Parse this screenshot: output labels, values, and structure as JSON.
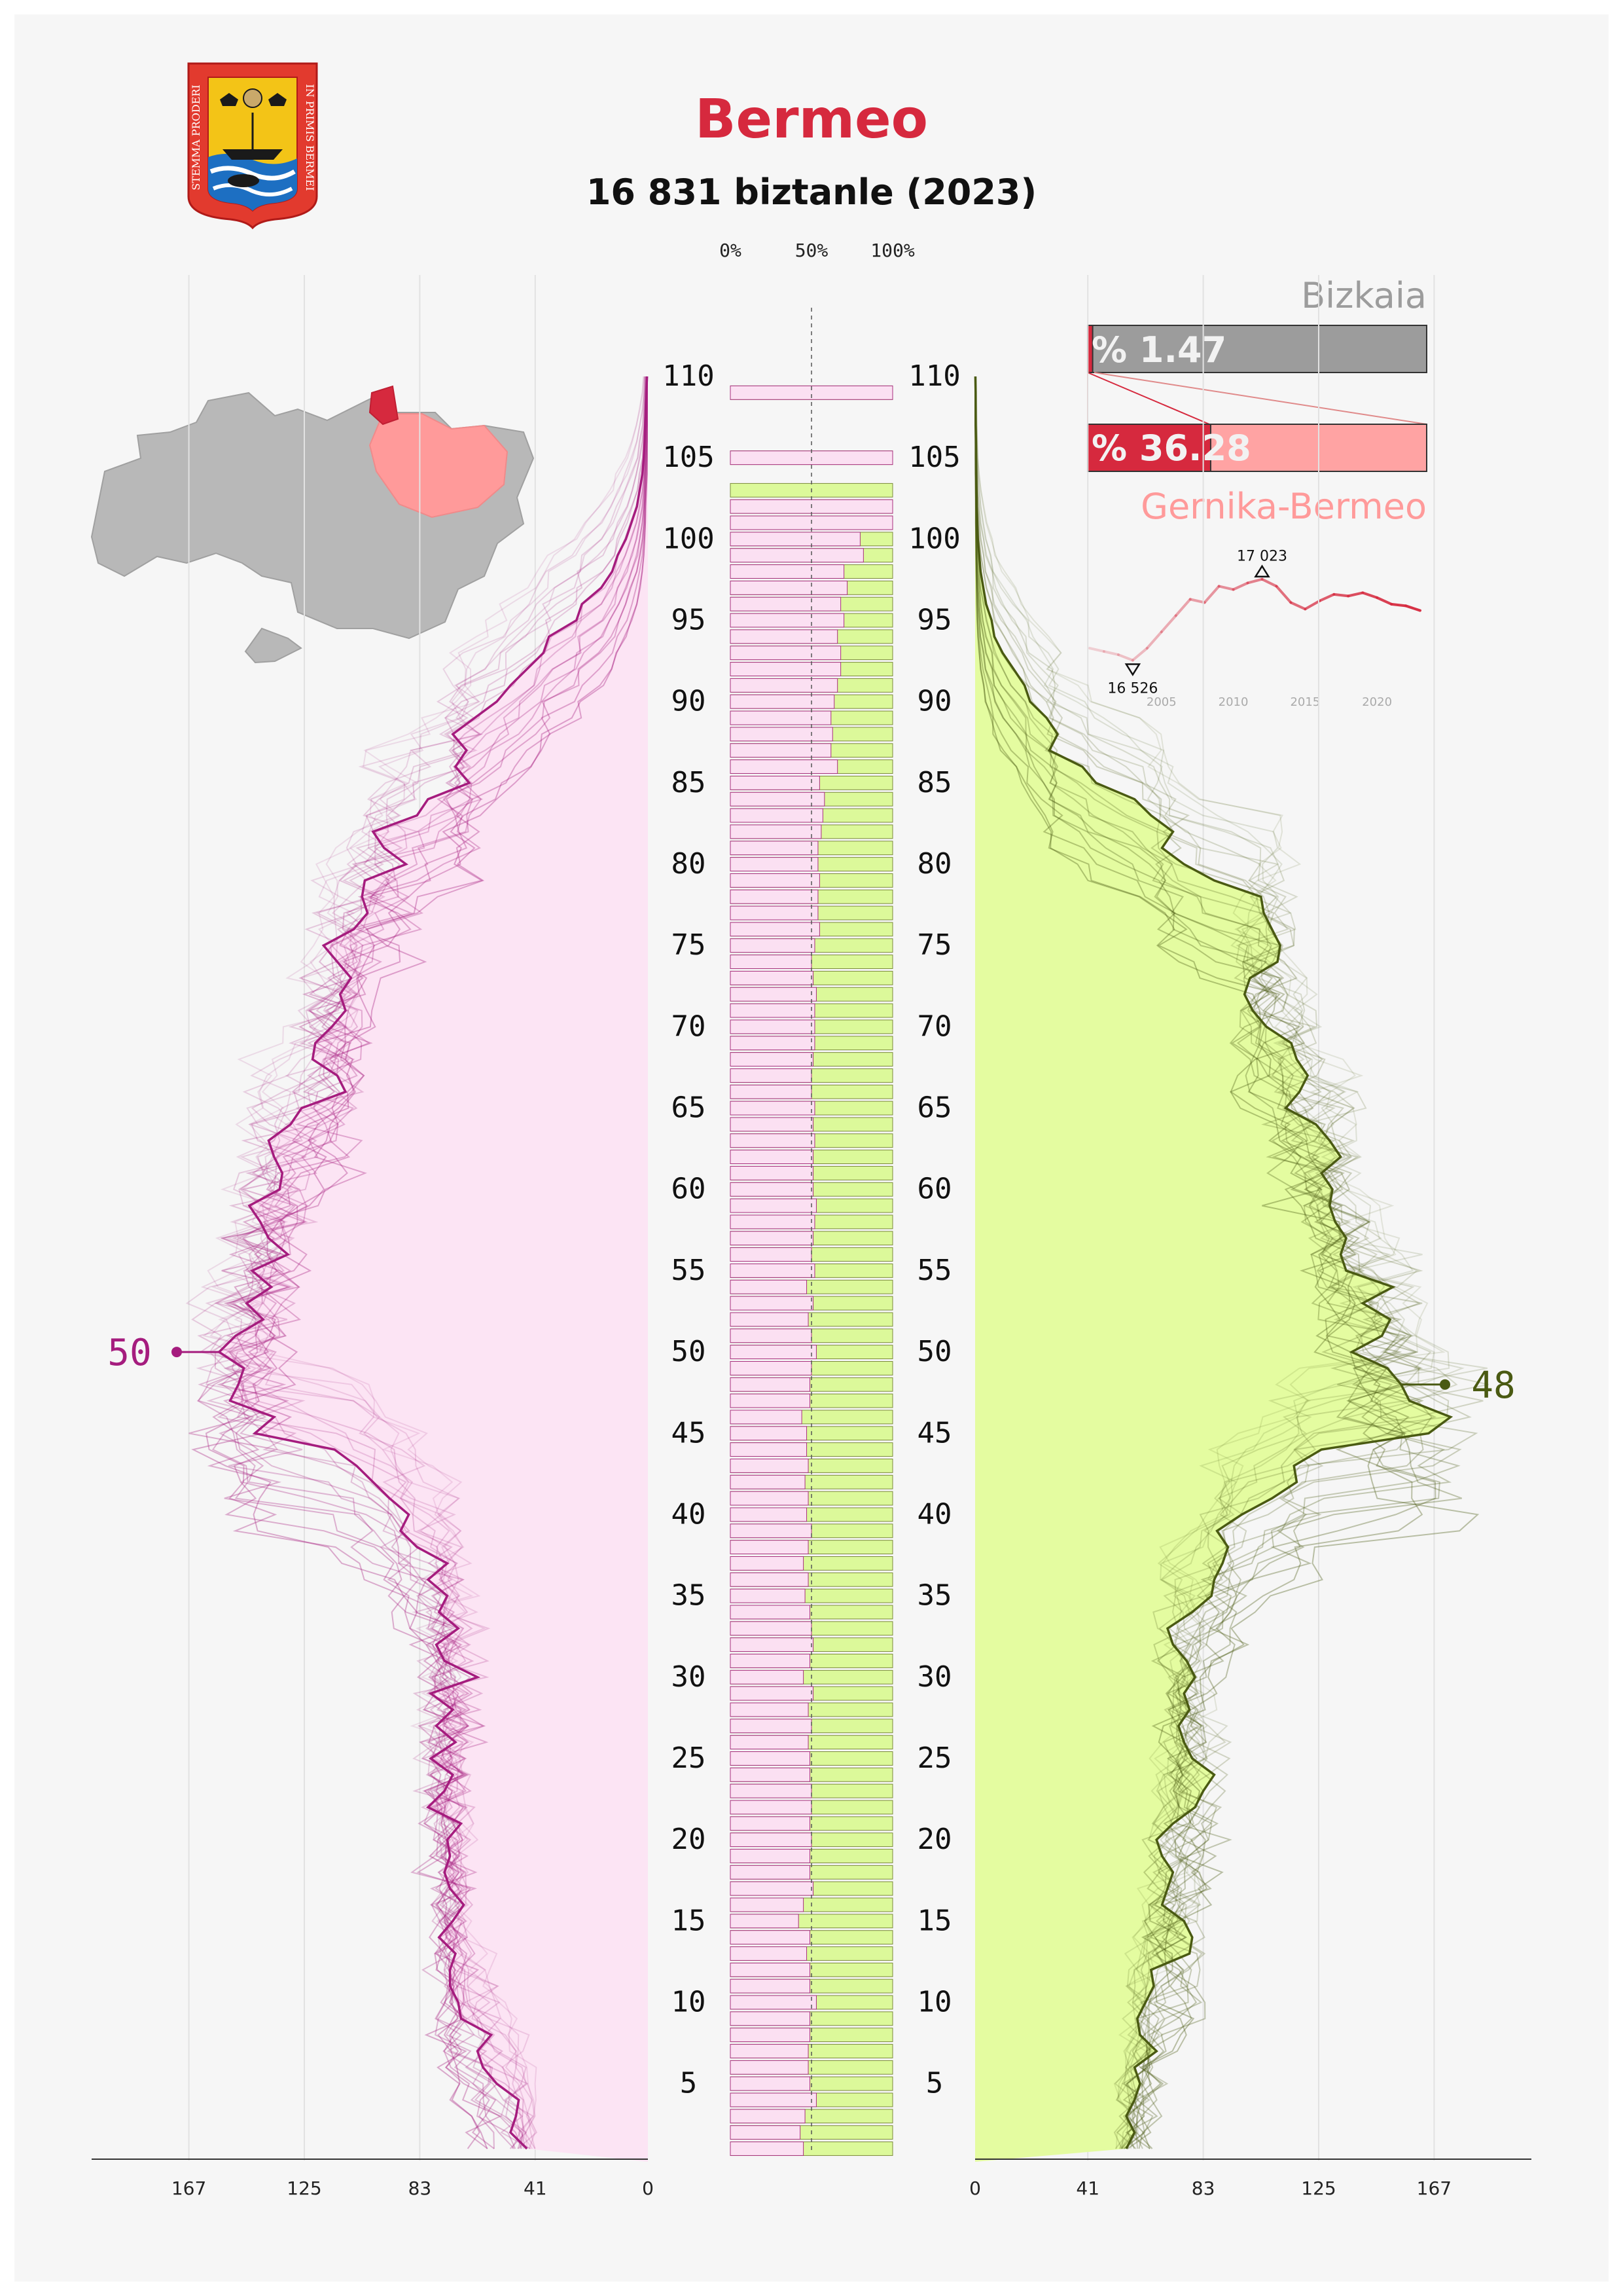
{
  "header": {
    "title": "Bermeo",
    "subtitle": "16 831 biztanle (2023)"
  },
  "colors": {
    "title": "#d6293e",
    "female": "#a51c7e",
    "female_fill": "#fce4f4",
    "male": "#4a5a12",
    "male_fill": "#e4fca0",
    "male_bar": "#dcf99a",
    "female_bar": "#fbe0f2",
    "region_dark": "#d6293e",
    "region_light": "#ff9a9a",
    "province": "#b8b8b8",
    "bizkaia_bar": "#9c9c9c",
    "comarca_bar": "#ffa3a3"
  },
  "icons": {
    "coat_of_arms": "bermeo-coat-of-arms",
    "map": "bizkaia-map-icon"
  },
  "coat_of_arms_text": {
    "left": "STEMMA PRODERI",
    "right": "IN PRIMIS BERMEI"
  },
  "chart_data": {
    "type": "population-pyramid",
    "year": 2023,
    "total_population": 16831,
    "age_labels": [
      "5",
      "10",
      "15",
      "20",
      "25",
      "30",
      "35",
      "40",
      "45",
      "50",
      "55",
      "60",
      "65",
      "70",
      "75",
      "80",
      "85",
      "90",
      "95",
      "100",
      "105",
      "110"
    ],
    "x_ticks": [
      "167",
      "125",
      "83",
      "41",
      "0"
    ],
    "x_ticks_right": [
      "0",
      "41",
      "83",
      "125",
      "167"
    ],
    "xlim": [
      0,
      205
    ],
    "ages": [
      1,
      2,
      3,
      4,
      5,
      6,
      7,
      8,
      9,
      10,
      11,
      12,
      13,
      14,
      15,
      16,
      17,
      18,
      19,
      20,
      21,
      22,
      23,
      24,
      25,
      26,
      27,
      28,
      29,
      30,
      31,
      32,
      33,
      34,
      35,
      36,
      37,
      38,
      39,
      40,
      41,
      42,
      43,
      44,
      45,
      46,
      47,
      48,
      49,
      50,
      51,
      52,
      53,
      54,
      55,
      56,
      57,
      58,
      59,
      60,
      61,
      62,
      63,
      64,
      65,
      66,
      67,
      68,
      69,
      70,
      71,
      72,
      73,
      74,
      75,
      76,
      77,
      78,
      79,
      80,
      81,
      82,
      83,
      84,
      85,
      86,
      87,
      88,
      89,
      90,
      91,
      92,
      93,
      94,
      95,
      96,
      97,
      98,
      99,
      100,
      101,
      102,
      103,
      104,
      105,
      106,
      107,
      108,
      109,
      110
    ],
    "female": [
      44,
      50,
      48,
      47,
      55,
      60,
      62,
      57,
      68,
      69,
      72,
      72,
      70,
      76,
      71,
      67,
      72,
      74,
      72,
      73,
      68,
      80,
      74,
      71,
      79,
      70,
      77,
      71,
      79,
      62,
      74,
      77,
      69,
      76,
      73,
      80,
      73,
      84,
      90,
      87,
      94,
      100,
      106,
      114,
      143,
      136,
      152,
      149,
      147,
      156,
      150,
      140,
      146,
      137,
      144,
      131,
      138,
      141,
      145,
      134,
      133,
      136,
      138,
      130,
      126,
      110,
      113,
      122,
      121,
      115,
      110,
      112,
      108,
      113,
      118,
      107,
      102,
      104,
      103,
      88,
      96,
      100,
      84,
      80,
      65,
      70,
      66,
      71,
      63,
      55,
      50,
      44,
      38,
      36,
      26,
      24,
      17,
      13,
      11,
      8,
      6,
      4,
      3,
      2,
      1.5,
      1.2,
      1,
      0.8,
      0.6,
      0.3
    ],
    "male": [
      55,
      58,
      55,
      58,
      60,
      58,
      66,
      60,
      59,
      62,
      65,
      64,
      78,
      79,
      76,
      68,
      70,
      72,
      68,
      66,
      72,
      80,
      83,
      87,
      79,
      76,
      74,
      78,
      76,
      80,
      77,
      72,
      70,
      79,
      86,
      87,
      90,
      92,
      88,
      97,
      108,
      117,
      116,
      126,
      165,
      173,
      158,
      155,
      150,
      137,
      148,
      151,
      141,
      152,
      135,
      133,
      135,
      131,
      129,
      130,
      126,
      133,
      129,
      124,
      113,
      118,
      121,
      117,
      115,
      106,
      101,
      98,
      100,
      110,
      111,
      108,
      105,
      104,
      87,
      76,
      68,
      72,
      64,
      58,
      44,
      39,
      27,
      30,
      26,
      20,
      18,
      14,
      10,
      7,
      6,
      4,
      3,
      2,
      1.5,
      1,
      0.8,
      0.6,
      0.5,
      0.4,
      0.3,
      0.3,
      0.2,
      0.2,
      0.2,
      0.1
    ],
    "female_label": "50",
    "male_label": "48",
    "female_label_age": 50,
    "male_label_age": 48,
    "ratio_ticks": [
      "0%",
      "50%",
      "100%"
    ],
    "male_share_by_age": [
      0.55,
      0.57,
      0.54,
      0.47,
      0.51,
      0.52,
      0.52,
      0.51,
      0.51,
      0.47,
      0.51,
      0.51,
      0.53,
      0.51,
      0.58,
      0.55,
      0.49,
      0.51,
      0.51,
      0.5,
      0.51,
      0.5,
      0.5,
      0.51,
      0.51,
      0.52,
      0.5,
      0.52,
      0.49,
      0.55,
      0.51,
      0.49,
      0.5,
      0.51,
      0.54,
      0.52,
      0.55,
      0.52,
      0.5,
      0.53,
      0.52,
      0.54,
      0.52,
      0.53,
      0.53,
      0.56,
      0.51,
      0.51,
      0.5,
      0.47,
      0.5,
      0.52,
      0.49,
      0.53,
      0.48,
      0.5,
      0.49,
      0.48,
      0.47,
      0.49,
      0.49,
      0.49,
      0.48,
      0.49,
      0.48,
      0.5,
      0.5,
      0.49,
      0.48,
      0.48,
      0.48,
      0.47,
      0.49,
      0.5,
      0.48,
      0.45,
      0.46,
      0.46,
      0.45,
      0.46,
      0.46,
      0.44,
      0.43,
      0.42,
      0.45,
      0.34,
      0.38,
      0.37,
      0.38,
      0.36,
      0.34,
      0.32,
      0.32,
      0.34,
      0.3,
      0.32,
      0.28,
      0.3,
      0.18,
      0.2,
      0.0,
      0.0,
      1.0,
      null,
      0.0,
      null,
      null,
      null,
      0.0,
      null,
      null,
      1.0
    ],
    "bizkaia_share": {
      "label": "% 1.47",
      "value": 1.47,
      "name": "Bizkaia"
    },
    "comarca_share": {
      "label": "% 36.28",
      "value": 36.28,
      "name": "Gernika-Bermeo"
    },
    "population_trend": {
      "years": [
        2000,
        2001,
        2002,
        2003,
        2004,
        2005,
        2006,
        2007,
        2008,
        2009,
        2010,
        2011,
        2012,
        2013,
        2014,
        2015,
        2016,
        2017,
        2018,
        2019,
        2020,
        2021,
        2022,
        2023
      ],
      "values": [
        16600,
        16580,
        16560,
        16526,
        16600,
        16700,
        16800,
        16900,
        16880,
        16980,
        16960,
        17000,
        17023,
        16980,
        16880,
        16840,
        16890,
        16930,
        16920,
        16940,
        16910,
        16870,
        16860,
        16831
      ],
      "x_ticks": [
        "2005",
        "2010",
        "2015",
        "2020"
      ],
      "min_label": "16 526",
      "max_label": "17 023",
      "min_year": 2003,
      "max_year": 2012
    }
  }
}
